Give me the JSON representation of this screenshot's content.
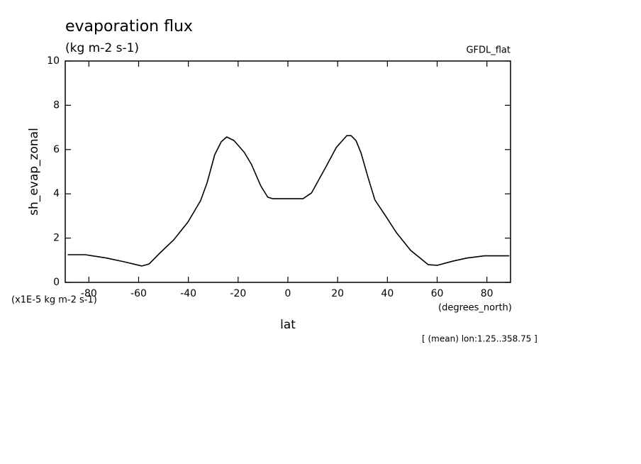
{
  "chart_data": {
    "type": "line",
    "title": "evaporation flux",
    "subtitle": "(kg m-2 s-1)",
    "dataset": "GFDL_flat",
    "y_label": "sh_evap_zonal",
    "y_units": "(x1E-5 kg m-2 s-1)",
    "x_label": "lat",
    "x_units": "(degrees_north)",
    "note": "[ (mean) lon:1.25..358.75 ]",
    "x": [
      -88.5,
      -81.4,
      -72.9,
      -65.8,
      -58.7,
      -55.8,
      -51.6,
      -45.9,
      -40.2,
      -35.1,
      -32.5,
      -29.4,
      -26.8,
      -24.6,
      -21.7,
      -17.5,
      -14.6,
      -10.9,
      -8.1,
      -6.1,
      6.1,
      9.5,
      15.2,
      19.5,
      23.7,
      25.4,
      27.4,
      29.4,
      32.2,
      35.0,
      39.3,
      43.6,
      49.3,
      56.4,
      60.0,
      66.3,
      72.0,
      79.0,
      89.0
    ],
    "values": [
      1.25,
      1.25,
      1.1,
      0.93,
      0.74,
      0.83,
      1.31,
      1.92,
      2.72,
      3.69,
      4.49,
      5.77,
      6.35,
      6.57,
      6.41,
      5.87,
      5.32,
      4.36,
      3.85,
      3.78,
      3.78,
      4.04,
      5.2,
      6.1,
      6.63,
      6.63,
      6.4,
      5.85,
      4.75,
      3.72,
      3.0,
      2.25,
      1.45,
      0.8,
      0.77,
      0.96,
      1.1,
      1.2,
      1.2
    ],
    "color": "#000000",
    "xlim": [
      -89.5,
      89.5
    ],
    "xticks": [
      -80,
      -60,
      -40,
      -20,
      0,
      20,
      40,
      60,
      80
    ],
    "ylim": [
      0,
      10
    ],
    "yticks": [
      0,
      2,
      4,
      6,
      8,
      10
    ]
  }
}
